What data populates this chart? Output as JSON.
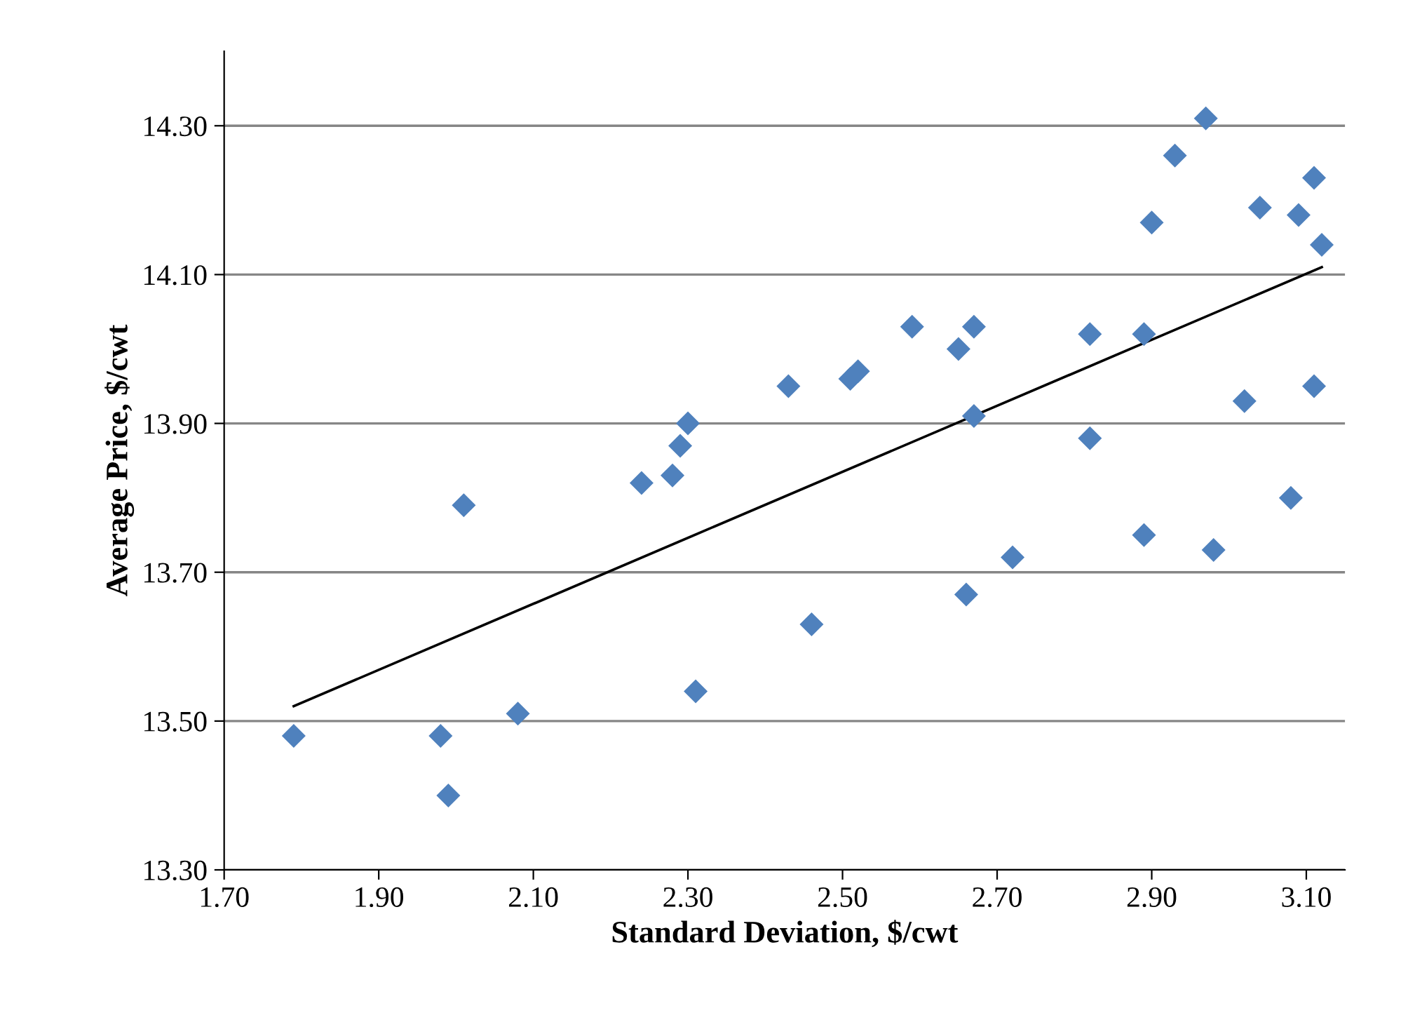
{
  "chart_data": {
    "type": "scatter",
    "xlabel": "Standard Deviation, $/cwt",
    "ylabel": "Average Price, $/cwt",
    "xlim": [
      1.7,
      3.15
    ],
    "ylim": [
      13.3,
      14.4
    ],
    "xticks": [
      {
        "value": 1.7,
        "label": "1.70"
      },
      {
        "value": 1.9,
        "label": "1.90"
      },
      {
        "value": 2.1,
        "label": "2.10"
      },
      {
        "value": 2.3,
        "label": "2.30"
      },
      {
        "value": 2.5,
        "label": "2.50"
      },
      {
        "value": 2.7,
        "label": "2.70"
      },
      {
        "value": 2.9,
        "label": "2.90"
      },
      {
        "value": 3.1,
        "label": "3.10"
      }
    ],
    "yticks": [
      {
        "value": 13.3,
        "label": "13.30"
      },
      {
        "value": 13.5,
        "label": "13.50"
      },
      {
        "value": 13.7,
        "label": "13.70"
      },
      {
        "value": 13.9,
        "label": "13.90"
      },
      {
        "value": 14.1,
        "label": "14.10"
      },
      {
        "value": 14.3,
        "label": "14.30"
      }
    ],
    "grid": "y",
    "series": [
      {
        "marker": "diamond",
        "color": "#4f81bd",
        "x": [
          1.79,
          1.98,
          1.99,
          2.01,
          2.08,
          2.24,
          2.28,
          2.29,
          2.3,
          2.31,
          2.43,
          2.46,
          2.51,
          2.52,
          2.59,
          2.65,
          2.67,
          2.67,
          2.66,
          2.72,
          2.82,
          2.82,
          2.89,
          2.89,
          2.9,
          2.93,
          2.97,
          2.98,
          3.02,
          3.04,
          3.08,
          3.09,
          3.11,
          3.11,
          3.12
        ],
        "values": [
          13.48,
          13.48,
          13.4,
          13.79,
          13.51,
          13.82,
          13.83,
          13.87,
          13.9,
          13.54,
          13.95,
          13.63,
          13.96,
          13.97,
          14.03,
          14.0,
          14.03,
          13.91,
          13.67,
          13.72,
          14.02,
          13.88,
          14.02,
          13.75,
          14.17,
          14.26,
          14.31,
          13.73,
          13.93,
          14.19,
          13.8,
          14.18,
          14.23,
          13.95,
          14.14
        ]
      },
      {
        "type": "line",
        "marker": "none",
        "color": "#000000",
        "x": [
          1.79,
          3.12
        ],
        "values": [
          13.52,
          14.11
        ]
      }
    ]
  }
}
